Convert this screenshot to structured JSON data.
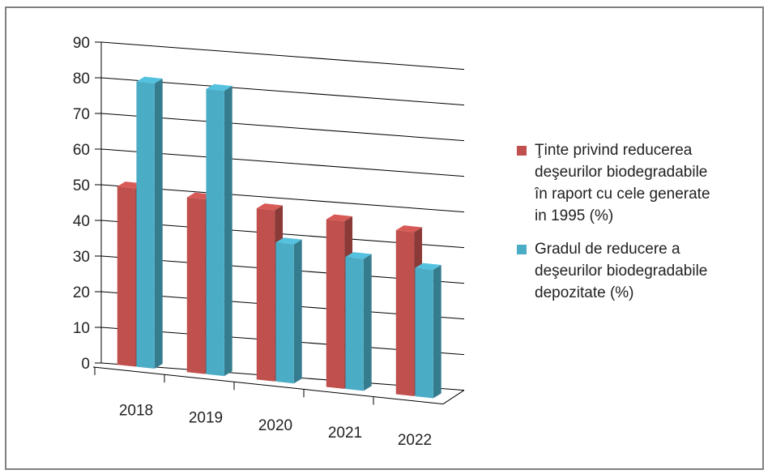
{
  "chart_data": {
    "type": "bar",
    "subtype": "3d-clustered-column",
    "categories": [
      "2018",
      "2019",
      "2020",
      "2021",
      "2022"
    ],
    "series": [
      {
        "name": "Ţinte privind reducerea\ndeşeurilor biodegradabile\nîn raport cu cele  generate\nin 1995 (%)",
        "values": [
          50,
          49,
          48,
          47,
          46
        ],
        "color": "#c0504d"
      },
      {
        "name": "Gradul de reducere a\ndeşeurilor  biodegradabile\ndepozitate (%)",
        "values": [
          80,
          80,
          39,
          37,
          36
        ],
        "color": "#4bacc6"
      }
    ],
    "yticks": [
      "0",
      "10",
      "20",
      "30",
      "40",
      "50",
      "60",
      "70",
      "80",
      "90"
    ],
    "ylim": [
      0,
      90
    ],
    "grid": true,
    "legend_position": "right"
  }
}
